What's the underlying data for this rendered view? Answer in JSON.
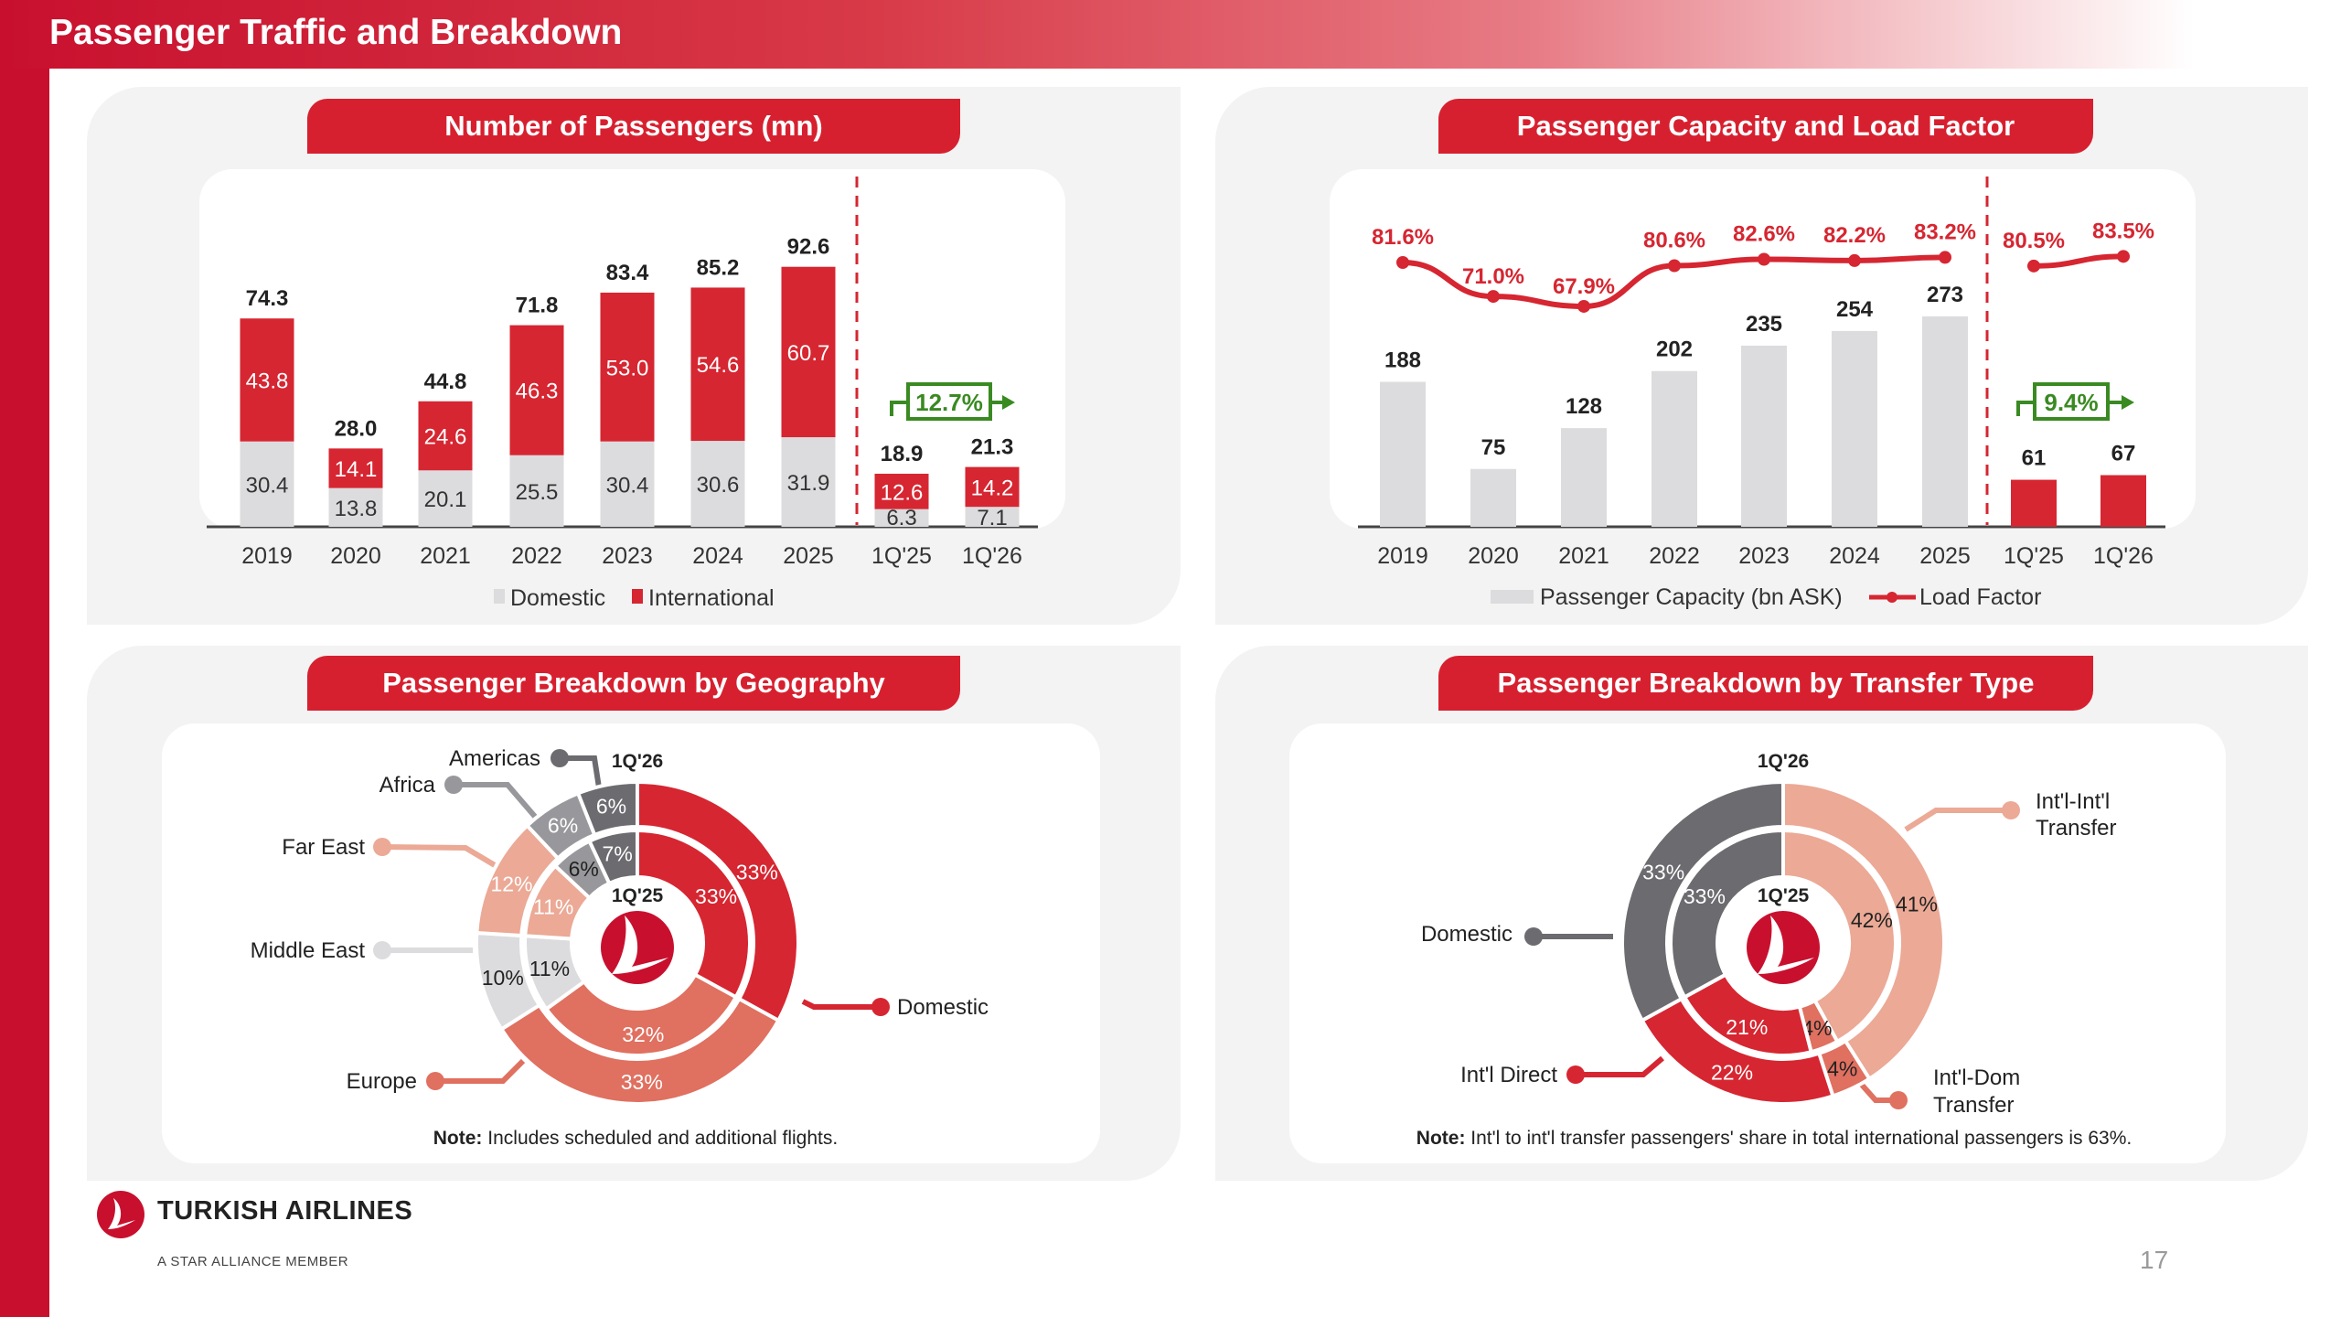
{
  "page": {
    "title": "Passenger Traffic and Breakdown",
    "page_number": "17",
    "brand": "TURKISH AIRLINES",
    "brand_sub": "A STAR ALLIANCE MEMBER"
  },
  "colors": {
    "red": "#d62631",
    "grey": "#dcdcde",
    "green": "#3a8a22",
    "accent": "#c8102e"
  },
  "chart_data": [
    {
      "id": "passengers",
      "panel_title": "Number of Passengers (mn)",
      "type": "bar",
      "stacked": true,
      "categories": [
        "2019",
        "2020",
        "2021",
        "2022",
        "2023",
        "2024",
        "2025",
        "1Q'25",
        "1Q'26"
      ],
      "series": [
        {
          "name": "Domestic",
          "color": "#dcdcde",
          "values": [
            30.4,
            13.8,
            20.1,
            25.5,
            30.4,
            30.6,
            31.9,
            6.3,
            7.1
          ]
        },
        {
          "name": "International",
          "color": "#d62631",
          "values": [
            43.8,
            14.1,
            24.6,
            46.3,
            53.0,
            54.6,
            60.7,
            12.6,
            14.2
          ]
        }
      ],
      "totals": [
        "74.3",
        "28.0",
        "44.8",
        "71.8",
        "83.4",
        "85.2",
        "92.6",
        "18.9",
        "21.3"
      ],
      "growth": "12.7%",
      "legend_placement": "bottom"
    },
    {
      "id": "capacity",
      "panel_title": "Passenger Capacity and Load Factor",
      "type": "bar+line",
      "categories": [
        "2019",
        "2020",
        "2021",
        "2022",
        "2023",
        "2024",
        "2025",
        "1Q'25",
        "1Q'26"
      ],
      "series": [
        {
          "name": "Passenger Capacity (bn ASK)",
          "color": "#dcdcde",
          "values": [
            188,
            75,
            128,
            202,
            235,
            254,
            273,
            61,
            67
          ]
        },
        {
          "name": "Load Factor",
          "color": "#d62631",
          "values": [
            81.6,
            71.0,
            67.9,
            80.6,
            82.6,
            82.2,
            83.2,
            80.5,
            83.5
          ],
          "labels": [
            "81.6%",
            "71.0%",
            "67.9%",
            "80.6%",
            "82.6%",
            "82.2%",
            "83.2%",
            "80.5%",
            "83.5%"
          ]
        }
      ],
      "quarter_bar_color": "#d62631",
      "growth": "9.4%",
      "legend_placement": "bottom"
    },
    {
      "id": "geography",
      "panel_title": "Passenger Breakdown by Geography",
      "type": "pie",
      "outer_label": "1Q'26",
      "inner_label": "1Q'25",
      "segments": [
        {
          "name": "Domestic",
          "color": "#d62631",
          "outer": 33,
          "inner": 33,
          "label_color": "#ffffff",
          "inner_label_color": "#ffffff"
        },
        {
          "name": "Europe",
          "color": "#e07060",
          "outer": 33,
          "inner": 32,
          "label_color": "#ffffff",
          "inner_label_color": "#ffffff"
        },
        {
          "name": "Middle East",
          "color": "#dcdcde",
          "outer": 10,
          "inner": 11,
          "label_color": "#222222",
          "inner_label_color": "#222222"
        },
        {
          "name": "Far East",
          "color": "#eba996",
          "outer": 12,
          "inner": 11,
          "label_color": "#ffffff",
          "inner_label_color": "#ffffff"
        },
        {
          "name": "Africa",
          "color": "#98989c",
          "outer": 6,
          "inner": 6,
          "label_color": "#ffffff",
          "inner_label_color": "#222222"
        },
        {
          "name": "Americas",
          "color": "#6b6b70",
          "outer": 6,
          "inner": 7,
          "label_color": "#ffffff",
          "inner_label_color": "#ffffff"
        }
      ],
      "note_label": "Note:",
      "note": "Includes scheduled and additional flights."
    },
    {
      "id": "transfer",
      "panel_title": "Passenger Breakdown by Transfer Type",
      "type": "pie",
      "outer_label": "1Q'26",
      "inner_label": "1Q'25",
      "segments": [
        {
          "name": "Int'l-Int'l Transfer",
          "color": "#eba996",
          "outer": 41,
          "inner": 42,
          "label_color": "#222222",
          "inner_label_color": "#222222"
        },
        {
          "name": "Int'l-Dom Transfer",
          "color": "#e07060",
          "outer": 4,
          "inner": 4,
          "label_color": "#222222",
          "inner_label_color": "#222222"
        },
        {
          "name": "Int'l Direct",
          "color": "#d62631",
          "outer": 22,
          "inner": 21,
          "label_color": "#ffffff",
          "inner_label_color": "#ffffff"
        },
        {
          "name": "Domestic",
          "color": "#6b6b70",
          "outer": 33,
          "inner": 33,
          "label_color": "#ffffff",
          "inner_label_color": "#ffffff"
        }
      ],
      "callouts": {
        "intl_intl": [
          "Int'l-Int'l",
          "Transfer"
        ],
        "intl_dom": [
          "Int'l-Dom",
          "Transfer"
        ]
      },
      "note_label": "Note:",
      "note": "Int'l to int'l transfer passengers' share in total international passengers is 63%."
    }
  ]
}
